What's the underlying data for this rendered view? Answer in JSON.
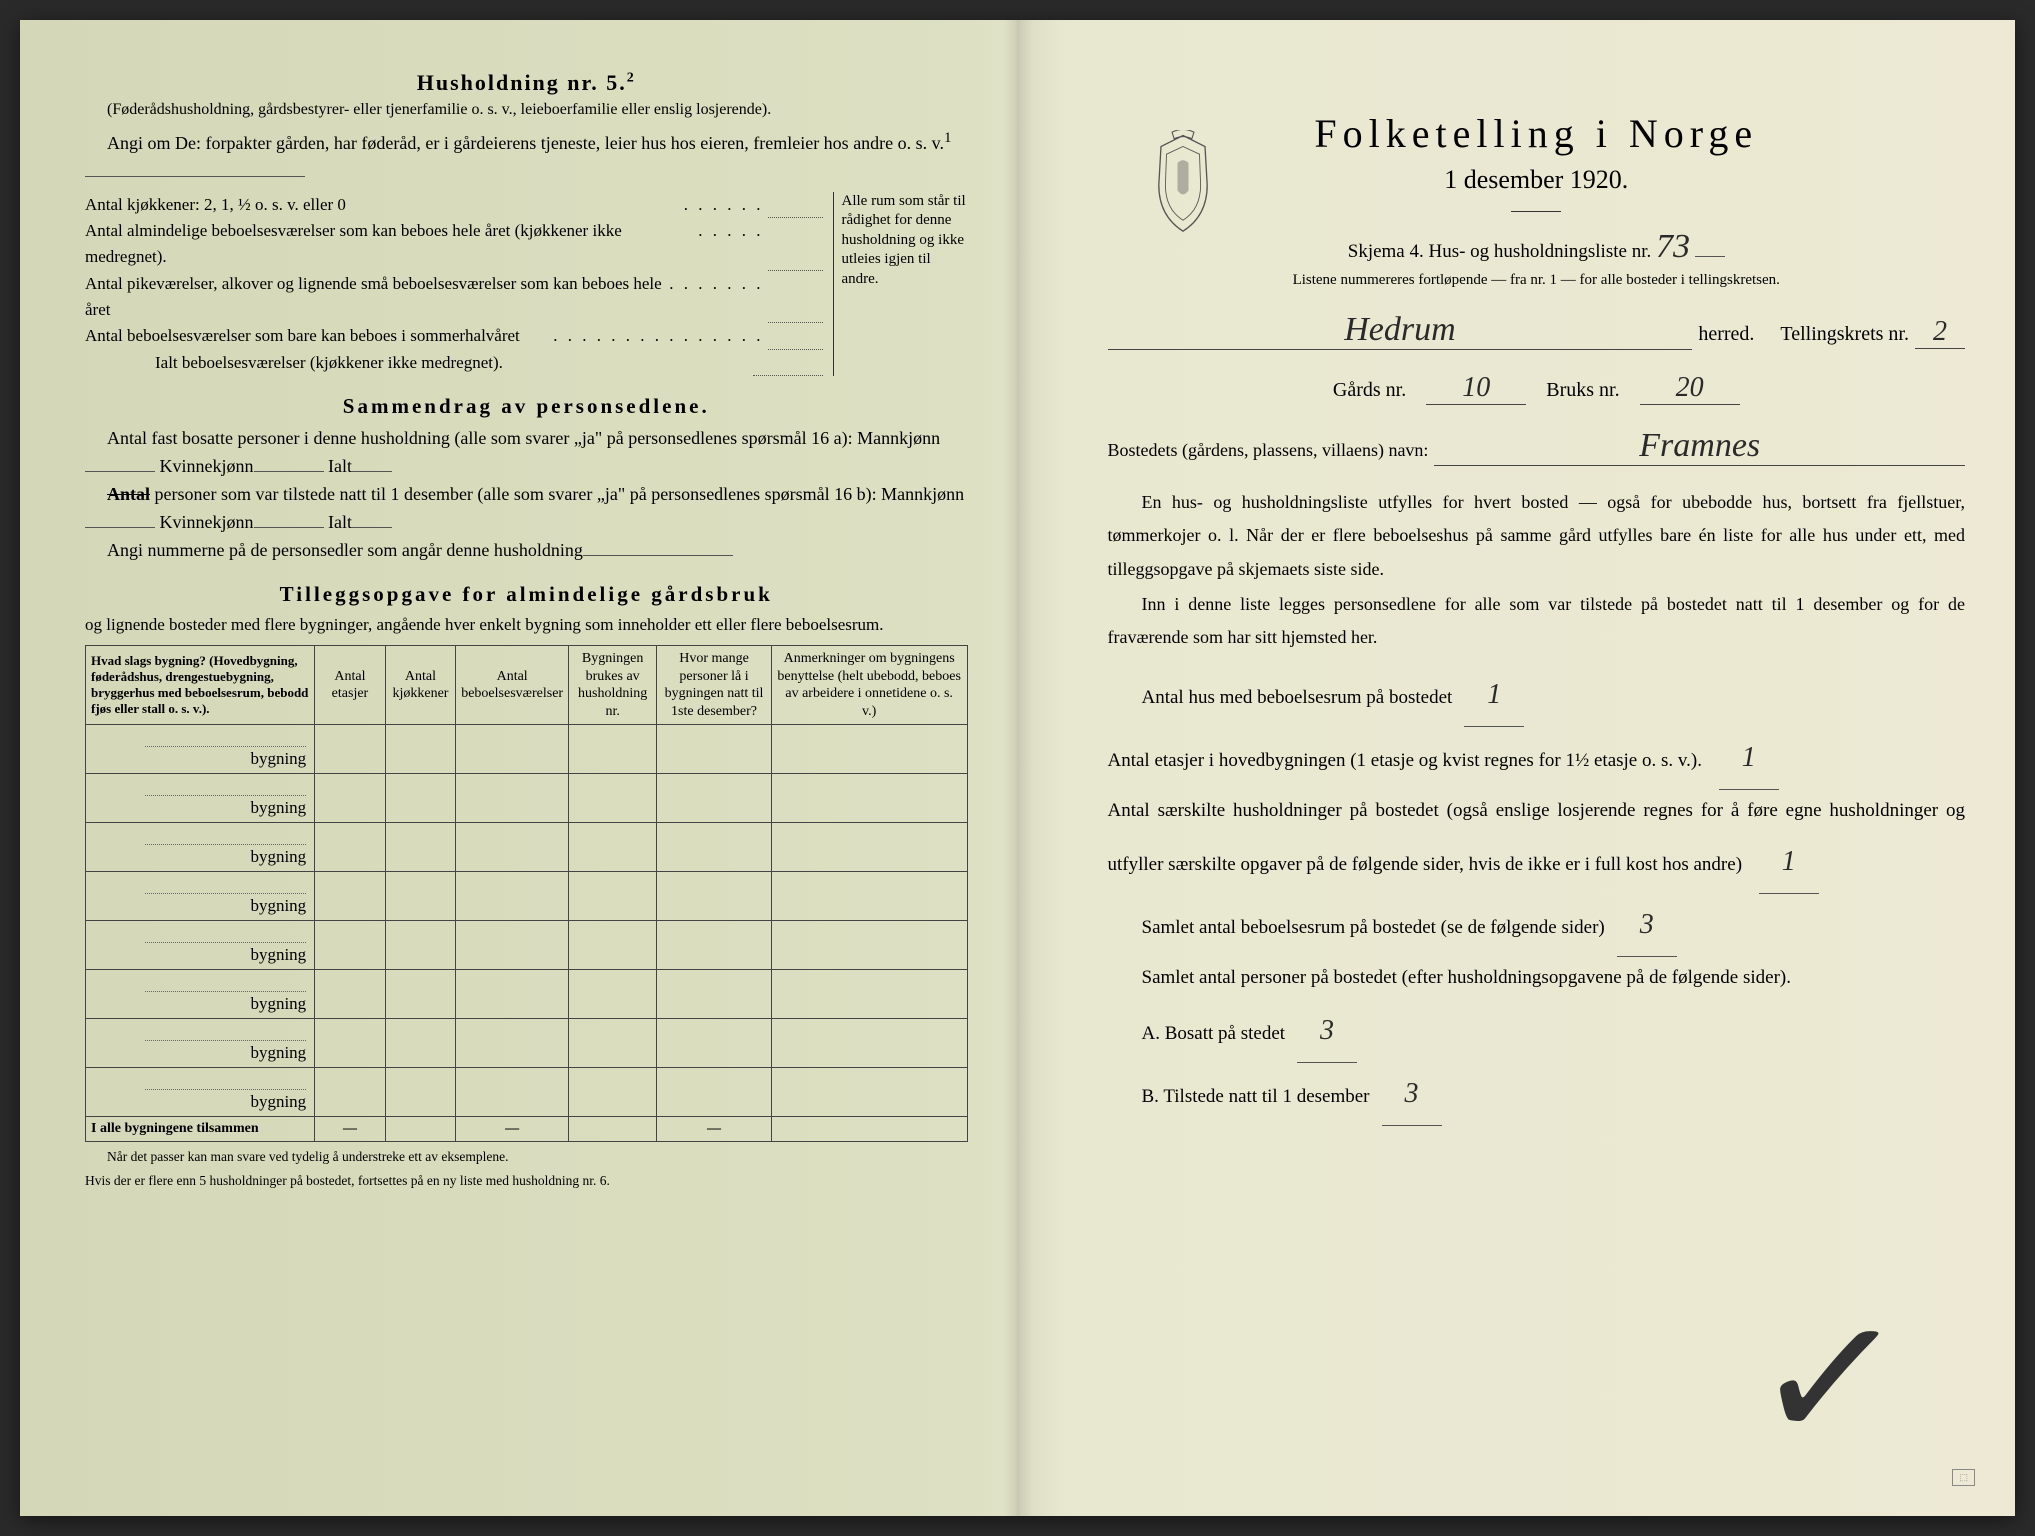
{
  "colors": {
    "paper_left": "#d4d8b8",
    "paper_right": "#ede9d4",
    "ink": "#2a2a2a",
    "rule": "#444444"
  },
  "typography": {
    "body_pt": 18,
    "title_pt": 40,
    "small_pt": 15,
    "font_family": "Georgia, Times New Roman, serif",
    "handwriting_family": "Brush Script MT, cursive"
  },
  "left": {
    "husholdning_title": "Husholdning nr. 5.",
    "husholdning_sup": "2",
    "husholdning_note": "(Føderådshusholdning, gårdsbestyrer- eller tjenerfamilie o. s. v., leieboerfamilie eller enslig losjerende).",
    "angi_intro": "Angi om De: forpakter gården, har føderåd, er i gårdeierens tjeneste, leier hus hos eieren, fremleier hos andre o. s. v.",
    "angi_sup": "1",
    "rooms": {
      "kjokken": "Antal kjøkkener: 2, 1, ½ o. s. v. eller 0",
      "alm": "Antal almindelige beboelsesværelser som kan beboes hele året (kjøkkener ikke medregnet).",
      "pike": "Antal pikeværelser, alkover og lignende små beboelsesværelser som kan beboes hele året",
      "sommer": "Antal beboelsesværelser som bare kan beboes i sommerhalvåret",
      "ialt": "Ialt beboelsesværelser (kjøkkener ikke medregnet).",
      "side_note": "Alle rum som står til rådighet for denne husholdning og ikke utleies igjen til andre."
    },
    "sammendrag_title": "Sammendrag av personsedlene.",
    "sammendrag_p1": "Antal fast bosatte personer i denne husholdning (alle som svarer „ja\" på personsedlenes spørsmål 16 a): Mannkjønn",
    "kvinnekjonn": "Kvinnekjønn",
    "ialt_label": "Ialt",
    "sammendrag_p2_pre": "Antal",
    "sammendrag_p2": " personer som var tilstede natt til 1 desember (alle som svarer „ja\" på personsedlenes spørsmål 16 b): Mannkjønn",
    "sammendrag_p3": "Angi nummerne på de personsedler som angår denne husholdning",
    "tillegg_title": "Tilleggsopgave for almindelige gårdsbruk",
    "tillegg_sub": "og lignende bosteder med flere bygninger, angående hver enkelt bygning som inneholder ett eller flere beboelsesrum.",
    "table": {
      "headers": [
        "Hvad slags bygning?\n(Hovedbygning, føderådshus, drengestuebygning, bryggerhus med beboelsesrum, bebodd fjøs eller stall o. s. v.).",
        "Antal etasjer",
        "Antal kjøkkener",
        "Antal beboelsesværelser",
        "Bygningen brukes av husholdning nr.",
        "Hvor mange personer lå i bygningen natt til 1ste desember?",
        "Anmerkninger om bygningens benyttelse (helt ubebodd, beboes av arbeidere i onnetidene o. s. v.)"
      ],
      "row_label": "bygning",
      "row_count": 8,
      "sum_label": "I alle bygningene tilsammen",
      "sum_dashes": [
        "—",
        "",
        "—",
        "",
        "—"
      ]
    },
    "table_foot1": "Når det passer kan man svare ved tydelig å understreke ett av eksemplene.",
    "table_foot2": "Hvis der er flere enn 5 husholdninger på bostedet, fortsettes på en ny liste med husholdning nr. 6."
  },
  "right": {
    "main_title": "Folketelling i Norge",
    "date_line": "1 desember 1920.",
    "skjema_label": "Skjema 4.   Hus- og husholdningsliste nr.",
    "skjema_nr": "73",
    "listene_note": "Listene nummereres fortløpende — fra nr. 1 — for alle bosteder i tellingskretsen.",
    "herred_value": "Hedrum",
    "herred_label": "herred.",
    "tellingskrets_label": "Tellingskrets nr.",
    "tellingskrets_nr": "2",
    "gards_label": "Gårds nr.",
    "gards_nr": "10",
    "bruks_label": "Bruks nr.",
    "bruks_nr": "20",
    "bosted_label": "Bostedets (gårdens, plassens, villaens) navn:",
    "bosted_value": "Framnes",
    "body": {
      "p1": "En hus- og husholdningsliste utfylles for hvert bosted — også for ubebodde hus, bortsett fra fjellstuer, tømmerkojer o. l.  Når der er flere beboelseshus på samme gård utfylles bare én liste for alle hus under ett, med tilleggsopgave på skjemaets siste side.",
      "p2": "Inn i denne liste legges personsedlene for alle som var tilstede på bostedet natt til 1 desember og for de fraværende som har sitt hjemsted her.",
      "antal_hus_label": "Antal hus med beboelsesrum på bostedet",
      "antal_hus_val": "1",
      "etasjer_label_a": "Antal etasjer i hovedbygningen (1 etasje og kvist regnes for 1½ etasje o. s. v.).",
      "etasjer_val": "1",
      "saerskilte_label": "Antal særskilte husholdninger på bostedet (også enslige losjerende regnes for å føre egne husholdninger og utfyller særskilte opgaver på de følgende sider, hvis de ikke er i full kost hos andre)",
      "saerskilte_val": "1",
      "samlet_rum_label": "Samlet antal beboelsesrum på bostedet (se de følgende sider)",
      "samlet_rum_val": "3",
      "samlet_pers_label": "Samlet antal personer på bostedet (efter husholdningsopgavene på de følgende sider).",
      "a_label": "A.  Bosatt på stedet",
      "a_val": "3",
      "b_label": "B.  Tilstede natt til 1 desember",
      "b_val": "3"
    }
  }
}
